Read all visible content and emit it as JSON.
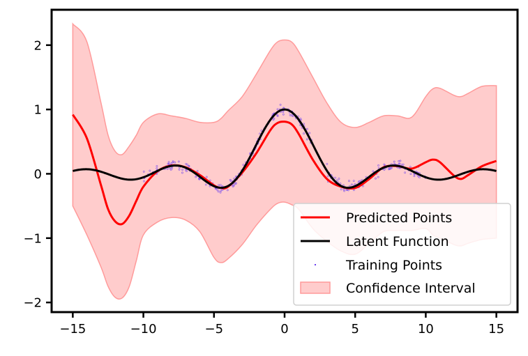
{
  "chart_data": {
    "type": "line",
    "title": "",
    "xlabel": "",
    "ylabel": "",
    "xlim": [
      -16.5,
      16.5
    ],
    "ylim": [
      -2.15,
      2.55
    ],
    "grid": false,
    "legend_placement": "lower-right",
    "xticks": [
      -15,
      -10,
      -5,
      0,
      5,
      10,
      15
    ],
    "yticks": [
      -2,
      -1,
      0,
      1,
      2
    ],
    "xtick_labels": [
      "−15",
      "−10",
      "−5",
      "0",
      "5",
      "10",
      "15"
    ],
    "ytick_labels": [
      "−2",
      "−1",
      "0",
      "1",
      "2"
    ],
    "colors": {
      "predicted": "#ff0000",
      "latent": "#000000",
      "training": "#6a3df0",
      "confidence_fill": "#ffcccc",
      "confidence_edge": "#ff9a9a"
    },
    "series": [
      {
        "name": "Predicted Points",
        "kind": "line",
        "x": [
          -15,
          -14,
          -13,
          -12.5,
          -12,
          -11.5,
          -11,
          -10.5,
          -10,
          -9,
          -8,
          -7,
          -6,
          -5,
          -4.5,
          -4,
          -3,
          -2,
          -1,
          -0.5,
          0,
          0.5,
          1,
          2,
          3,
          4,
          5,
          6,
          7,
          8,
          9,
          10,
          10.5,
          11,
          12,
          12.5,
          13,
          14,
          15
        ],
        "y": [
          0.92,
          0.55,
          -0.18,
          -0.55,
          -0.74,
          -0.78,
          -0.65,
          -0.42,
          -0.2,
          0.04,
          0.13,
          0.1,
          -0.02,
          -0.18,
          -0.22,
          -0.2,
          0.02,
          0.32,
          0.68,
          0.79,
          0.81,
          0.77,
          0.62,
          0.22,
          -0.08,
          -0.2,
          -0.22,
          -0.08,
          0.1,
          0.12,
          0.08,
          0.18,
          0.22,
          0.18,
          -0.03,
          -0.08,
          -0.02,
          0.12,
          0.2
        ]
      },
      {
        "name": "Latent Function",
        "kind": "line",
        "function": "sinc(x/pi)",
        "x_range": [
          -15,
          15
        ]
      },
      {
        "name": "Training Points",
        "kind": "scatter",
        "x_ranges": [
          [
            -10,
            -2
          ],
          [
            -2,
            2
          ],
          [
            3,
            10
          ]
        ],
        "noise_sd": 0.04,
        "count_per_range": [
          120,
          60,
          110
        ]
      },
      {
        "name": "Confidence Interval",
        "kind": "band",
        "x": [
          -15,
          -14,
          -13,
          -12.5,
          -12,
          -11.5,
          -11,
          -10.5,
          -10,
          -9,
          -8,
          -7,
          -6,
          -5,
          -4.5,
          -4,
          -3,
          -2,
          -1,
          -0.5,
          0,
          0.5,
          1,
          2,
          3,
          4,
          5,
          6,
          7,
          8,
          9,
          10,
          10.5,
          11,
          12,
          12.5,
          13,
          14,
          15
        ],
        "upper": [
          2.33,
          2.05,
          1.1,
          0.6,
          0.35,
          0.3,
          0.43,
          0.6,
          0.8,
          0.93,
          0.9,
          0.86,
          0.8,
          0.8,
          0.86,
          0.98,
          1.2,
          1.55,
          1.92,
          2.05,
          2.08,
          2.05,
          1.9,
          1.5,
          1.1,
          0.8,
          0.72,
          0.8,
          0.9,
          0.9,
          0.88,
          1.2,
          1.32,
          1.33,
          1.22,
          1.2,
          1.25,
          1.36,
          1.37
        ],
        "lower": [
          -0.5,
          -0.95,
          -1.45,
          -1.75,
          -1.92,
          -1.93,
          -1.75,
          -1.35,
          -0.95,
          -0.75,
          -0.68,
          -0.72,
          -0.9,
          -1.3,
          -1.38,
          -1.32,
          -1.1,
          -0.8,
          -0.55,
          -0.46,
          -0.44,
          -0.48,
          -0.55,
          -0.85,
          -1.05,
          -1.2,
          -1.25,
          -1.08,
          -0.9,
          -0.88,
          -0.88,
          -0.85,
          -0.95,
          -1.0,
          -1.1,
          -1.12,
          -1.08,
          -1.02,
          -1.0
        ]
      }
    ]
  }
}
